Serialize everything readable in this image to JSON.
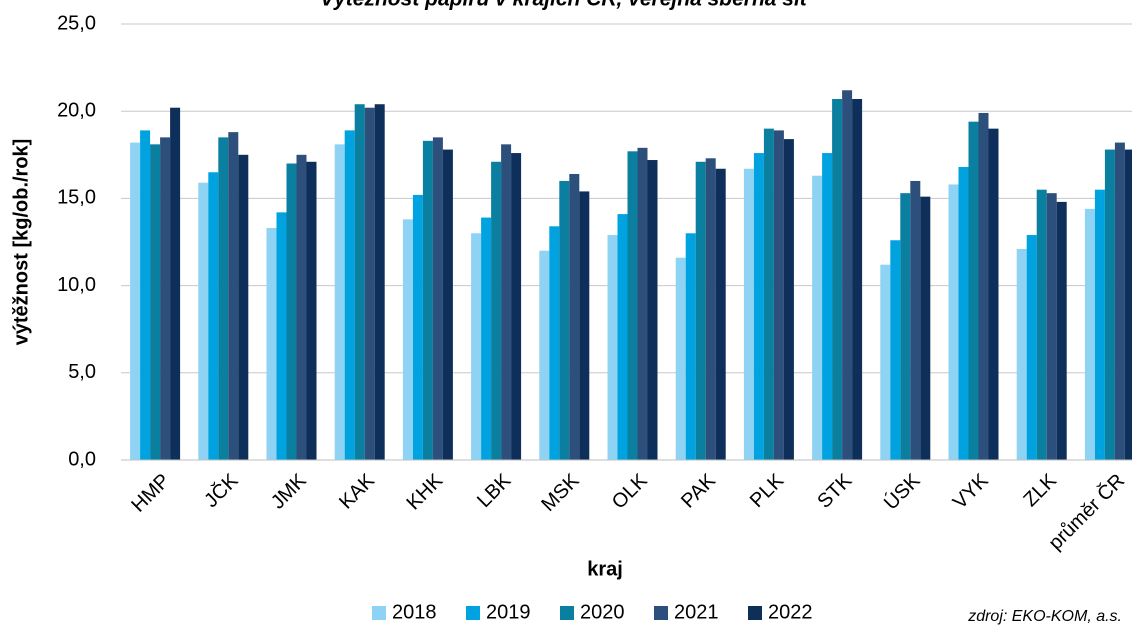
{
  "chart_data": {
    "type": "bar",
    "title": "Výtěžnost papíru v krajích ČR, veřejná sběrná síť",
    "xlabel": "kraj",
    "ylabel": "výtěžnost [kg/ob./rok]",
    "source": "zdroj: EKO-KOM, a.s.",
    "categories": [
      "HMP",
      "JČK",
      "JMK",
      "KAK",
      "KHK",
      "LBK",
      "MSK",
      "OLK",
      "PAK",
      "PLK",
      "STK",
      "ÚSK",
      "VYK",
      "ZLK",
      "průměr ČR"
    ],
    "series": [
      {
        "name": "2018",
        "color": "#8fd3f4",
        "values": [
          18.2,
          15.9,
          13.3,
          18.1,
          13.8,
          13.0,
          12.0,
          12.9,
          11.6,
          16.7,
          16.3,
          11.2,
          15.8,
          12.1,
          14.4
        ]
      },
      {
        "name": "2019",
        "color": "#00a3e0",
        "values": [
          18.9,
          16.5,
          14.2,
          18.9,
          15.2,
          13.9,
          13.4,
          14.1,
          13.0,
          17.6,
          17.6,
          12.6,
          16.8,
          12.9,
          15.5
        ]
      },
      {
        "name": "2020",
        "color": "#0a7fa0",
        "values": [
          18.1,
          18.5,
          17.0,
          20.4,
          18.3,
          17.1,
          16.0,
          17.7,
          17.1,
          19.0,
          20.7,
          15.3,
          19.4,
          15.5,
          17.8
        ]
      },
      {
        "name": "2021",
        "color": "#2c4f7c",
        "values": [
          18.5,
          18.8,
          17.5,
          20.2,
          18.5,
          18.1,
          16.4,
          17.9,
          17.3,
          18.9,
          21.2,
          16.0,
          19.9,
          15.3,
          18.2
        ]
      },
      {
        "name": "2022",
        "color": "#0d2f5a",
        "values": [
          20.2,
          17.5,
          17.1,
          20.4,
          17.8,
          17.6,
          15.4,
          17.2,
          16.7,
          18.4,
          20.7,
          15.1,
          19.0,
          14.8,
          17.8
        ]
      }
    ],
    "ylim": [
      0,
      25
    ],
    "yticks": [
      {
        "value": 0,
        "label": "0,0"
      },
      {
        "value": 5,
        "label": "5,0"
      },
      {
        "value": 10,
        "label": "10,0"
      },
      {
        "value": 15,
        "label": "15,0"
      },
      {
        "value": 20,
        "label": "20,0"
      },
      {
        "value": 25,
        "label": "25,0"
      }
    ],
    "grid": true,
    "legend": "bottom"
  }
}
